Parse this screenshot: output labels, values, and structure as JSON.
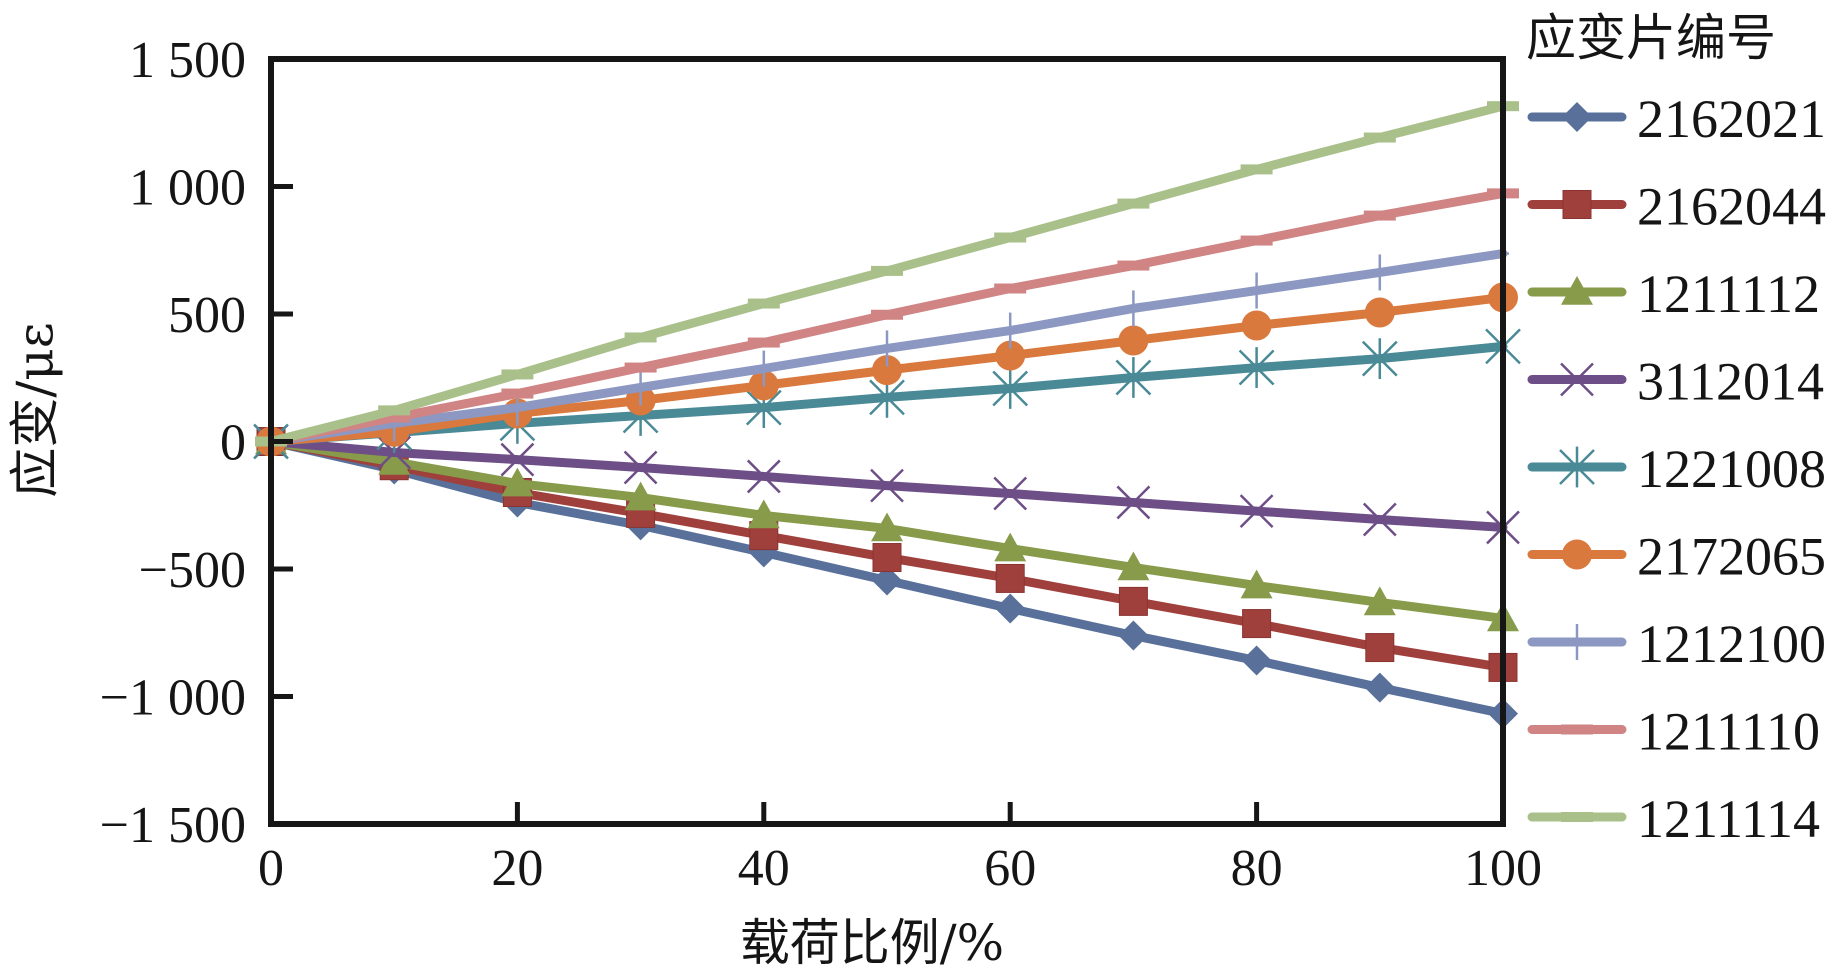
{
  "chart_data": {
    "type": "line",
    "title": "",
    "xlabel": "载荷比例/%",
    "ylabel": "应变/με",
    "xlim": [
      0,
      100
    ],
    "ylim": [
      -1500,
      1500
    ],
    "xticks": [
      0,
      20,
      40,
      60,
      80,
      100
    ],
    "xtick_labels": [
      "0",
      "20",
      "40",
      "60",
      "80",
      "100"
    ],
    "yticks": [
      1500,
      1000,
      500,
      0,
      -500,
      -1000,
      -1500
    ],
    "ytick_labels": [
      "1 500",
      "1 000",
      "500",
      "0",
      "−500",
      "−1 000",
      "−1 500"
    ],
    "grid": false,
    "legend_title": "应变片编号",
    "legend_position": "right-outside",
    "x": [
      0,
      10,
      20,
      30,
      40,
      50,
      60,
      70,
      80,
      90,
      100
    ],
    "series": [
      {
        "name": "2162021",
        "color": "#58709a",
        "marker": "diamond",
        "values": [
          0,
          -110,
          -239,
          -329,
          -435,
          -545,
          -655,
          -761,
          -859,
          -965,
          -1067
        ]
      },
      {
        "name": "2162044",
        "color": "#a0403c",
        "marker": "square",
        "values": [
          0,
          -95,
          -200,
          -282,
          -369,
          -455,
          -537,
          -627,
          -714,
          -808,
          -886
        ]
      },
      {
        "name": "1211112",
        "color": "#879b4b",
        "marker": "triangle",
        "values": [
          0,
          -80,
          -165,
          -220,
          -290,
          -341,
          -420,
          -494,
          -565,
          -631,
          -694
        ]
      },
      {
        "name": "3112014",
        "color": "#6d4e86",
        "marker": "x",
        "values": [
          0,
          -43,
          -71,
          -102,
          -137,
          -173,
          -204,
          -239,
          -273,
          -306,
          -337
        ]
      },
      {
        "name": "1221008",
        "color": "#4a8a96",
        "marker": "asterisk",
        "values": [
          0,
          35,
          71,
          102,
          133,
          173,
          208,
          251,
          290,
          325,
          373
        ]
      },
      {
        "name": "2172065",
        "color": "#d9793e",
        "marker": "circle",
        "values": [
          0,
          38,
          110,
          161,
          220,
          280,
          337,
          396,
          455,
          506,
          565
        ]
      },
      {
        "name": "1212100",
        "color": "#8c98c2",
        "marker": "plus",
        "values": [
          0,
          71,
          133,
          212,
          286,
          365,
          435,
          522,
          592,
          663,
          737
        ]
      },
      {
        "name": "1211110",
        "color": "#d08484",
        "marker": "dash",
        "values": [
          0,
          94,
          188,
          290,
          388,
          497,
          600,
          690,
          788,
          886,
          973
        ]
      },
      {
        "name": "1211114",
        "color": "#a9c08a",
        "marker": "dash",
        "values": [
          0,
          122,
          263,
          408,
          541,
          669,
          800,
          933,
          1067,
          1192,
          1315
        ]
      }
    ]
  }
}
